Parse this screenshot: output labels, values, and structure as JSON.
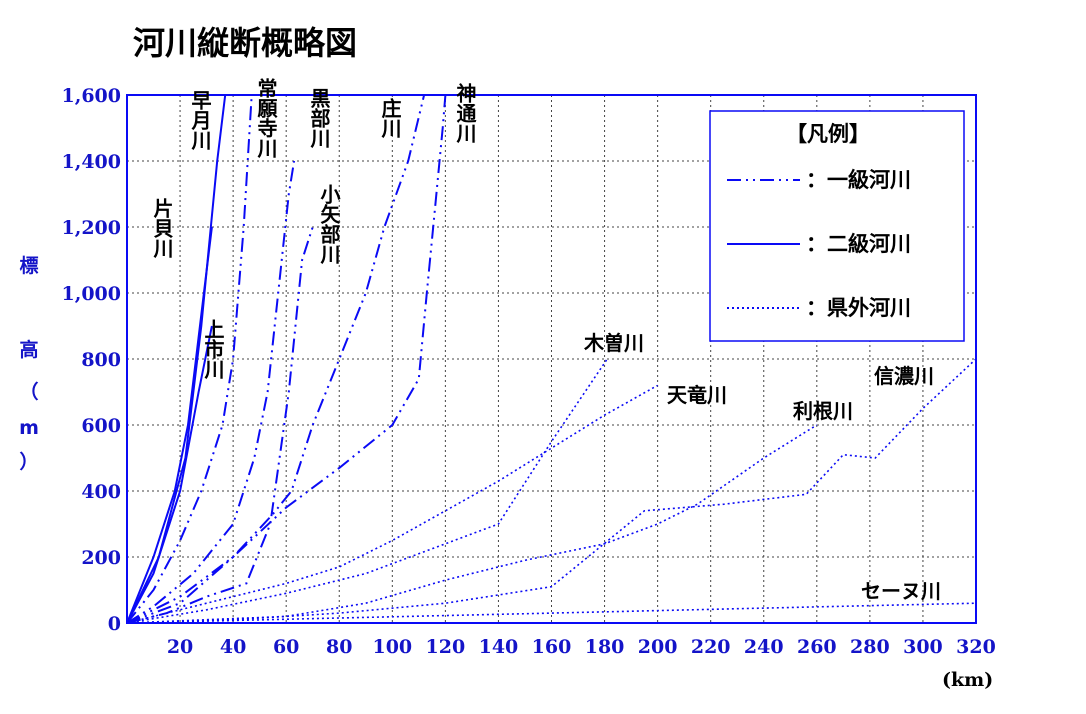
{
  "chart_data": {
    "type": "line",
    "title": "河川縦断概略図",
    "ylabel": "標高（m）",
    "xunit": "(km)",
    "xlim": [
      0,
      320
    ],
    "ylim": [
      0,
      1600
    ],
    "xticks": [
      20,
      40,
      60,
      80,
      100,
      120,
      140,
      160,
      180,
      200,
      220,
      240,
      260,
      280,
      300,
      320
    ],
    "yticks": [
      0,
      200,
      400,
      600,
      800,
      1000,
      1200,
      1400,
      1600
    ],
    "grid": true,
    "legend_position": "top-right",
    "legend": {
      "title": "【凡例】",
      "items": [
        {
          "style": "dashdotdot",
          "label": "：一級河川"
        },
        {
          "style": "solid",
          "label": "：二級河川"
        },
        {
          "style": "dotted",
          "label": "：県外河川"
        }
      ]
    },
    "series": [
      {
        "name": "早月川",
        "style": "solid",
        "x": [
          0,
          12,
          22,
          28,
          34,
          37
        ],
        "y": [
          0,
          200,
          500,
          900,
          1400,
          1600
        ]
      },
      {
        "name": "片貝川",
        "style": "solid",
        "x": [
          0,
          10,
          18,
          23,
          26,
          29,
          32
        ],
        "y": [
          0,
          200,
          400,
          600,
          800,
          1000,
          1200
        ]
      },
      {
        "name": "上市川",
        "style": "solid",
        "x": [
          0,
          10,
          20,
          27,
          32
        ],
        "y": [
          0,
          150,
          400,
          700,
          900
        ]
      },
      {
        "name": "常願寺川",
        "style": "dashdotdot",
        "x": [
          0,
          10,
          20,
          28,
          36,
          40,
          44,
          47
        ],
        "y": [
          0,
          100,
          250,
          400,
          600,
          800,
          1200,
          1600
        ]
      },
      {
        "name": "小矢部川",
        "style": "dashdotdot",
        "x": [
          0,
          15,
          30,
          45,
          54,
          61,
          66,
          70
        ],
        "y": [
          0,
          30,
          80,
          120,
          300,
          700,
          1100,
          1200
        ]
      },
      {
        "name": "黒部川",
        "style": "dashdotdot",
        "x": [
          0,
          10,
          25,
          40,
          48,
          53,
          57,
          61,
          63
        ],
        "y": [
          0,
          50,
          150,
          300,
          500,
          700,
          1000,
          1300,
          1400
        ]
      },
      {
        "name": "庄川",
        "style": "dashdotdot",
        "x": [
          0,
          20,
          40,
          55,
          62,
          70,
          80,
          90,
          97,
          106,
          112
        ],
        "y": [
          0,
          80,
          200,
          330,
          400,
          600,
          800,
          1000,
          1200,
          1400,
          1600
        ]
      },
      {
        "name": "神通川",
        "style": "dashdotdot",
        "x": [
          0,
          20,
          40,
          60,
          80,
          100,
          110,
          113,
          116,
          119,
          120
        ],
        "y": [
          0,
          60,
          200,
          350,
          470,
          600,
          740,
          1000,
          1250,
          1500,
          1600
        ]
      },
      {
        "name": "木曽川",
        "style": "dotted",
        "x": [
          0,
          30,
          60,
          90,
          140,
          160,
          181
        ],
        "y": [
          0,
          40,
          90,
          150,
          300,
          550,
          800
        ]
      },
      {
        "name": "天竜川",
        "style": "dotted",
        "x": [
          0,
          30,
          60,
          80,
          100,
          120,
          140,
          160,
          180,
          200
        ],
        "y": [
          0,
          60,
          120,
          170,
          250,
          340,
          430,
          530,
          630,
          720
        ]
      },
      {
        "name": "利根川",
        "style": "dotted",
        "x": [
          0,
          30,
          60,
          90,
          120,
          150,
          180,
          200,
          215,
          240,
          260
        ],
        "y": [
          0,
          10,
          20,
          60,
          130,
          190,
          240,
          300,
          360,
          500,
          600
        ]
      },
      {
        "name": "信濃川",
        "style": "dotted",
        "x": [
          0,
          40,
          80,
          120,
          160,
          195,
          225,
          256,
          270,
          282,
          300,
          320
        ],
        "y": [
          0,
          10,
          30,
          60,
          110,
          340,
          360,
          390,
          510,
          500,
          650,
          800
        ]
      },
      {
        "name": "セーヌ川",
        "style": "dotted",
        "x": [
          0,
          80,
          160,
          240,
          320
        ],
        "y": [
          0,
          15,
          30,
          45,
          60
        ]
      }
    ]
  },
  "colors": {
    "line": "#0a0af5",
    "axis_text": "#1414c8",
    "grid": "#444444",
    "text": "#000000"
  }
}
